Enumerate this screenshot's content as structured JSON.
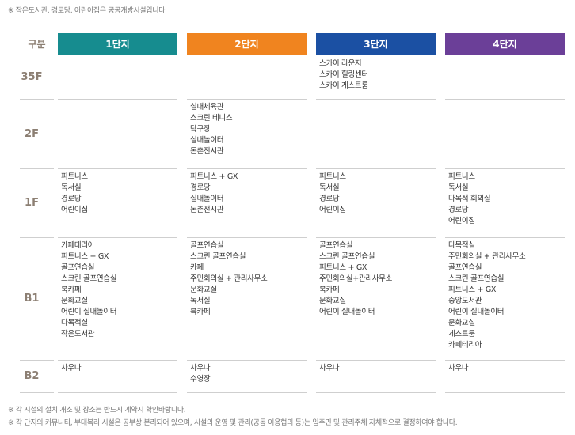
{
  "header": {
    "note": "※ 작은도서관, 경로당, 어린이집은 공공개방시설입니다."
  },
  "table": {
    "corner": "구분",
    "columns": [
      {
        "label": "1단지",
        "color": "#168c8f"
      },
      {
        "label": "2단지",
        "color": "#f0841f"
      },
      {
        "label": "3단지",
        "color": "#1b50a3"
      },
      {
        "label": "4단지",
        "color": "#6b3f98"
      }
    ],
    "rows": [
      {
        "floor": "35F",
        "cells": [
          [],
          [],
          [
            "스카이 라운지",
            "스카이 힐링센터",
            "스카이 게스트룸"
          ],
          []
        ]
      },
      {
        "floor": "2F",
        "cells": [
          [],
          [
            "실내체육관",
            "스크린 테니스",
            "탁구장",
            "실내놀이터",
            "돈촌전시관"
          ],
          [],
          []
        ]
      },
      {
        "floor": "1F",
        "cells": [
          [
            "피트니스",
            "독서실",
            "경로당",
            "어린이집"
          ],
          [
            "피트니스 + GX",
            "경로당",
            "실내놀이터",
            "돈촌전시관"
          ],
          [
            "피트니스",
            "독서실",
            "경로당",
            "어린이집"
          ],
          [
            "피트니스",
            "독서실",
            "다목적 회의실",
            "경로당",
            "어린이집"
          ]
        ]
      },
      {
        "floor": "B1",
        "cells": [
          [
            "카페테리아",
            "피트니스 + GX",
            "골프연습실",
            "스크린 골프연습실",
            "북카페",
            "문화교실",
            "어린이 실내놀이터",
            "다목적실",
            "작은도서관"
          ],
          [
            "골프연습실",
            "스크린 골프연습실",
            "카페",
            "주민회의실 + 관리사무소",
            "문화교실",
            "독서실",
            "북카페"
          ],
          [
            "골프연습실",
            "스크린 골프연습실",
            "피트니스 + GX",
            "주민회의실+관리사무소",
            "북카페",
            "문화교실",
            "어린이 실내놀이터"
          ],
          [
            "다목적실",
            "주민회의실 + 관리사무소",
            "골프연습실",
            "스크린 골프연습실",
            "피트니스 + GX",
            "중앙도서관",
            "어린이 실내놀이터",
            "문화교실",
            "게스트룸",
            "카페테리아"
          ]
        ]
      },
      {
        "floor": "B2",
        "cells": [
          [
            "사우나"
          ],
          [
            "사우나",
            "수영장"
          ],
          [
            "사우나"
          ],
          [
            "사우나"
          ]
        ]
      }
    ]
  },
  "footer": {
    "notes": [
      "※ 각 시설의 설치 개소 및 장소는 반드시 계약시 확인바랍니다.",
      "※ 각 단지의 커뮤니티, 부대복리 시설은 공부상 분리되어 있으며, 시설의 운영 및 관리(공동 이용협의 등)는 입주민 및 관리주체 자체적으로 결정하여야 합니다."
    ]
  }
}
